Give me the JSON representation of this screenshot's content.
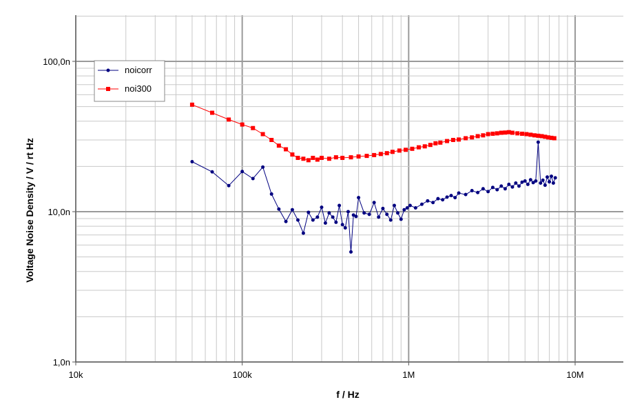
{
  "chart_data": {
    "type": "line",
    "title": "",
    "xlabel": "f / Hz",
    "ylabel": "Voltage Noise Density / V / rt Hz",
    "xscale": "log",
    "yscale": "log",
    "xlim": [
      10000,
      20000000
    ],
    "ylim": [
      1e-09,
      2e-07
    ],
    "x_ticks": [
      {
        "value": 10000,
        "label": "10k"
      },
      {
        "value": 100000,
        "label": "100k"
      },
      {
        "value": 1000000,
        "label": "1M"
      },
      {
        "value": 10000000,
        "label": "10M"
      }
    ],
    "y_ticks": [
      {
        "value": 1e-09,
        "label": "1,0n"
      },
      {
        "value": 1e-08,
        "label": "10,0n"
      },
      {
        "value": 1e-07,
        "label": "100,0n"
      }
    ],
    "grid": true,
    "legend_position": "top-left",
    "series": [
      {
        "name": "noicorr",
        "color": "#000080",
        "marker": "circle",
        "x": [
          50000,
          66000,
          83000,
          100000,
          116000,
          133000,
          150000,
          166000,
          183000,
          200000,
          216000,
          233000,
          250000,
          266000,
          283000,
          300000,
          316000,
          333000,
          350000,
          366000,
          383000,
          400000,
          416000,
          433000,
          450000,
          466000,
          483000,
          500000,
          540000,
          580000,
          620000,
          660000,
          700000,
          740000,
          780000,
          820000,
          860000,
          900000,
          940000,
          980000,
          1020000,
          1100000,
          1200000,
          1300000,
          1400000,
          1500000,
          1600000,
          1700000,
          1800000,
          1900000,
          2000000,
          2200000,
          2400000,
          2600000,
          2800000,
          3000000,
          3200000,
          3400000,
          3600000,
          3800000,
          4000000,
          4200000,
          4400000,
          4600000,
          4800000,
          5000000,
          5200000,
          5400000,
          5600000,
          5800000,
          6000000,
          6200000,
          6400000,
          6600000,
          6800000,
          7000000,
          7200000,
          7400000,
          7600000
        ],
        "y": [
          2.15e-08,
          1.84e-08,
          1.49e-08,
          1.85e-08,
          1.66e-08,
          1.98e-08,
          1.31e-08,
          1.04e-08,
          8.6e-09,
          1.03e-08,
          8.8e-09,
          7.2e-09,
          9.9e-09,
          8.8e-09,
          9.2e-09,
          1.07e-08,
          8.4e-09,
          9.8e-09,
          9.2e-09,
          8.5e-09,
          1.1e-08,
          8.2e-09,
          7.8e-09,
          1e-08,
          5.4e-09,
          9.5e-09,
          9.3e-09,
          1.24e-08,
          9.8e-09,
          9.6e-09,
          1.15e-08,
          9.2e-09,
          1.05e-08,
          9.6e-09,
          8.8e-09,
          1.1e-08,
          9.8e-09,
          8.9e-09,
          1.03e-08,
          1.06e-08,
          1.1e-08,
          1.06e-08,
          1.12e-08,
          1.18e-08,
          1.15e-08,
          1.22e-08,
          1.2e-08,
          1.25e-08,
          1.28e-08,
          1.24e-08,
          1.33e-08,
          1.3e-08,
          1.38e-08,
          1.34e-08,
          1.42e-08,
          1.36e-08,
          1.45e-08,
          1.4e-08,
          1.48e-08,
          1.42e-08,
          1.52e-08,
          1.46e-08,
          1.55e-08,
          1.48e-08,
          1.57e-08,
          1.6e-08,
          1.52e-08,
          1.63e-08,
          1.56e-08,
          1.6e-08,
          2.9e-08,
          1.55e-08,
          1.62e-08,
          1.5e-08,
          1.7e-08,
          1.58e-08,
          1.72e-08,
          1.55e-08,
          1.68e-08
        ]
      },
      {
        "name": "noi300",
        "color": "#ff0000",
        "marker": "square",
        "x": [
          50000,
          66000,
          83000,
          100000,
          116000,
          133000,
          150000,
          166000,
          183000,
          200000,
          216000,
          233000,
          250000,
          266000,
          283000,
          300000,
          333000,
          366000,
          400000,
          450000,
          500000,
          560000,
          620000,
          680000,
          740000,
          800000,
          880000,
          960000,
          1050000,
          1150000,
          1250000,
          1350000,
          1450000,
          1550000,
          1700000,
          1850000,
          2000000,
          2200000,
          2400000,
          2600000,
          2800000,
          3000000,
          3200000,
          3400000,
          3600000,
          3800000,
          4000000,
          4200000,
          4500000,
          4800000,
          5100000,
          5400000,
          5700000,
          6000000,
          6300000,
          6600000,
          6900000,
          7200000,
          7500000
        ],
        "y": [
          5.15e-08,
          4.55e-08,
          4.1e-08,
          3.8e-08,
          3.6e-08,
          3.28e-08,
          3e-08,
          2.75e-08,
          2.6e-08,
          2.4e-08,
          2.28e-08,
          2.25e-08,
          2.2e-08,
          2.28e-08,
          2.22e-08,
          2.28e-08,
          2.25e-08,
          2.3e-08,
          2.28e-08,
          2.3e-08,
          2.33e-08,
          2.35e-08,
          2.38e-08,
          2.42e-08,
          2.45e-08,
          2.5e-08,
          2.55e-08,
          2.58e-08,
          2.62e-08,
          2.68e-08,
          2.72e-08,
          2.78e-08,
          2.85e-08,
          2.88e-08,
          2.95e-08,
          3e-08,
          3.02e-08,
          3.08e-08,
          3.12e-08,
          3.18e-08,
          3.22e-08,
          3.28e-08,
          3.3e-08,
          3.32e-08,
          3.35e-08,
          3.36e-08,
          3.38e-08,
          3.35e-08,
          3.32e-08,
          3.3e-08,
          3.28e-08,
          3.25e-08,
          3.22e-08,
          3.2e-08,
          3.18e-08,
          3.15e-08,
          3.12e-08,
          3.1e-08,
          3.08e-08
        ]
      }
    ]
  }
}
